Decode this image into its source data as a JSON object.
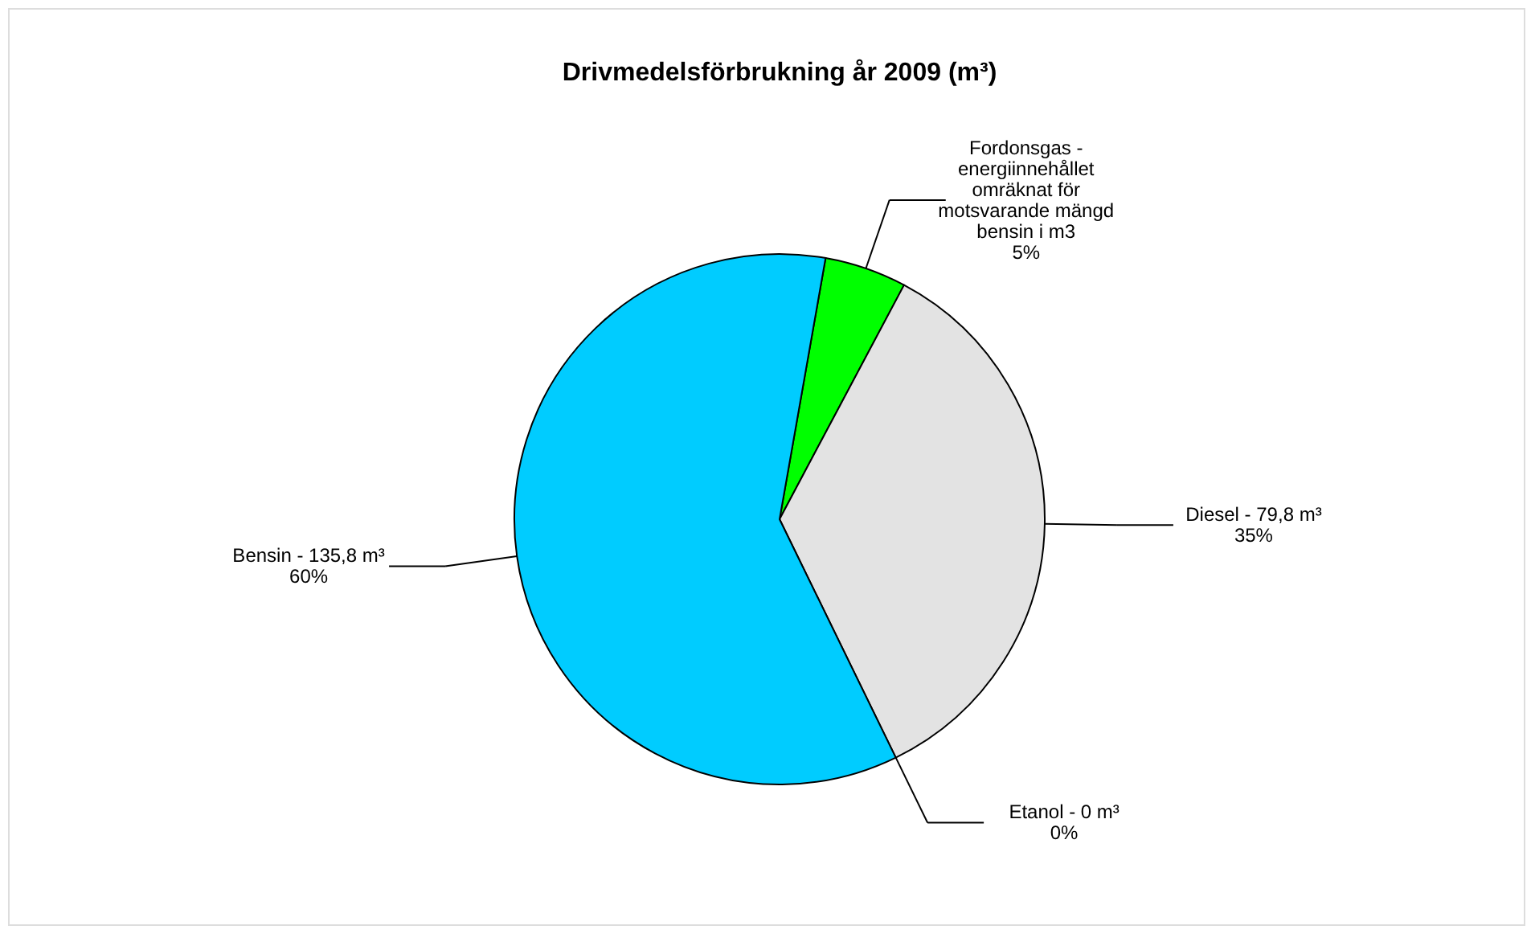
{
  "chart_data": {
    "type": "pie",
    "title": "Drivmedelsförbrukning år 2009 (m³)",
    "categories": [
      "Fordonsgas - energiinnehållet omräknat för motsvarande mängd bensin i m3",
      "Diesel - 79,8 m³",
      "Etanol - 0 m³",
      "Bensin - 135,8 m³"
    ],
    "values": [
      5,
      35,
      0,
      60
    ],
    "colors": [
      "#00ff00",
      "#e3e3e3",
      "#993366",
      "#00ccff"
    ],
    "value_labels": [
      "5%",
      "35%",
      "0%",
      "60%"
    ]
  }
}
